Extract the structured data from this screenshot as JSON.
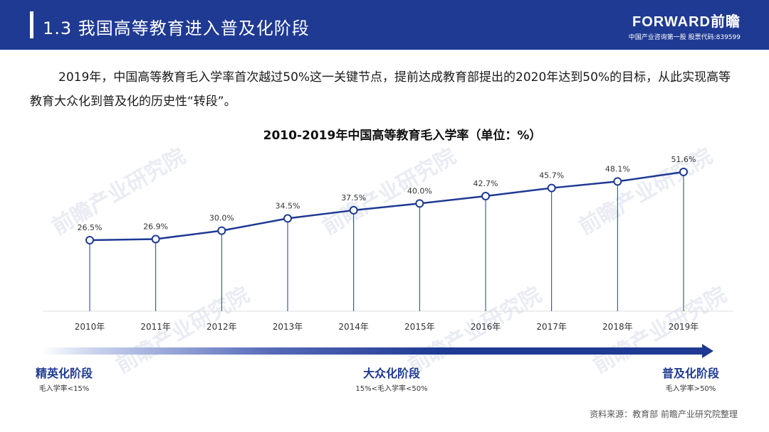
{
  "header": {
    "section_title": "1.3 我国高等教育进入普及化阶段",
    "brand_name": "FORWARD前瞻",
    "brand_tagline": "中国产业咨询第一股 股票代码:839599"
  },
  "intro_text": "2019年，中国高等教育毛入学率首次越过50%这一关键节点，提前达成教育部提出的2020年达到50%的目标，从此实现高等教育大众化到普及化的历史性“转段”。",
  "chart_data": {
    "type": "line",
    "title": "2010-2019年中国高等教育毛入学率（单位：%）",
    "categories": [
      "2010年",
      "2011年",
      "2012年",
      "2013年",
      "2014年",
      "2015年",
      "2016年",
      "2017年",
      "2018年",
      "2019年"
    ],
    "series": [
      {
        "values": [
          26.5,
          26.9,
          30.0,
          34.5,
          37.5,
          40.0,
          42.7,
          45.7,
          48.1,
          51.6
        ]
      }
    ],
    "data_labels": [
      "26.5%",
      "26.9%",
      "30.0%",
      "34.5%",
      "37.5%",
      "40.0%",
      "42.7%",
      "45.7%",
      "48.1%",
      "51.6%"
    ],
    "colors": {
      "line": "#1f3a93",
      "marker_fill": "#ffffff",
      "drop_line": "#1f3a93"
    }
  },
  "stages": [
    {
      "name": "精英化阶段",
      "desc": "毛入学率<15%"
    },
    {
      "name": "大众化阶段",
      "desc": "15%<毛入学率<50%"
    },
    {
      "name": "普及化阶段",
      "desc": "毛入学率>50%"
    }
  ],
  "watermark_text": "前瞻产业研究院",
  "source": "资料来源：教育部 前瞻产业研究院整理",
  "colors": {
    "primary": "#1f3a93",
    "background": "#ffffff"
  }
}
